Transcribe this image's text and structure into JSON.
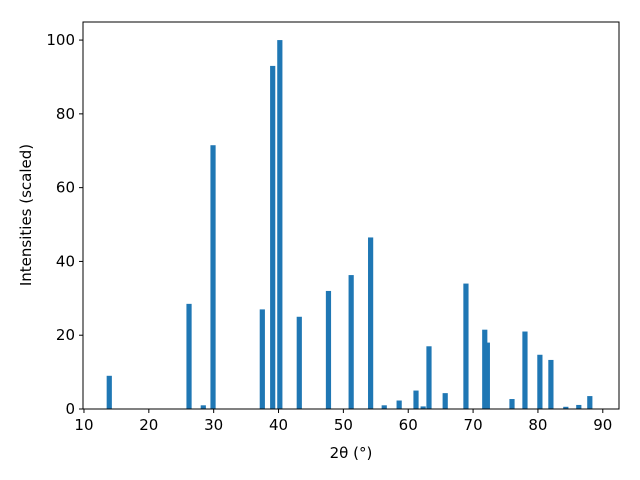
{
  "chart_data": {
    "type": "bar",
    "xlabel": "2θ (°)",
    "ylabel": "Intensities (scaled)",
    "x": [
      13.9,
      26.2,
      28.4,
      29.9,
      37.5,
      39.1,
      40.2,
      43.2,
      47.7,
      51.2,
      54.2,
      56.3,
      58.6,
      61.2,
      62.3,
      63.2,
      65.7,
      68.9,
      71.8,
      72.2,
      76.0,
      78.0,
      80.3,
      82.0,
      84.3,
      86.3,
      88.0
    ],
    "values": [
      9,
      28.5,
      1,
      71.5,
      27,
      93,
      100,
      25,
      32,
      36.3,
      46.5,
      1,
      2.3,
      5,
      0.7,
      17,
      4.3,
      34,
      21.5,
      18,
      2.7,
      21,
      14.7,
      13.3,
      0.6,
      1.1,
      3.5
    ],
    "color": "#1f77b4",
    "xlim": [
      9.85,
      92.5
    ],
    "xticks": [
      10,
      20,
      30,
      40,
      50,
      60,
      70,
      80,
      90
    ],
    "ylim": [
      0,
      104.9
    ],
    "yticks": [
      0,
      20,
      40,
      60,
      80,
      100
    ]
  }
}
